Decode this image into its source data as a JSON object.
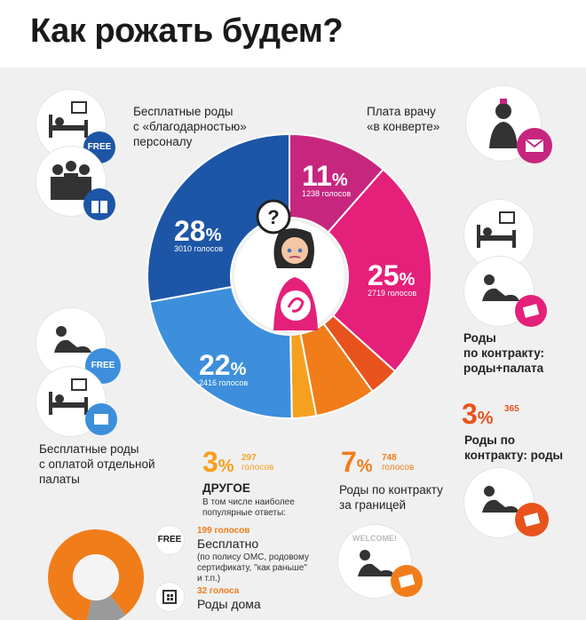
{
  "title": "Как рожать будем?",
  "colors": {
    "magenta_dark": "#c7267f",
    "magenta": "#e4207a",
    "orange_dark": "#e8531d",
    "orange": "#f07d1a",
    "orange_light": "#f6a01f",
    "blue": "#3d8fdc",
    "navy": "#1d56a6"
  },
  "chart_data": {
    "type": "pie",
    "title": "Как рожать будем?",
    "slices": [
      {
        "label": "Плата врачу «в конверте»",
        "percent": 11,
        "votes": 1238,
        "votes_text": "1238 голосов",
        "color": "#c7267f"
      },
      {
        "label": "Роды по контракту: роды+палата",
        "percent": 25,
        "votes": 2719,
        "votes_text": "2719 голосов",
        "color": "#e4207a"
      },
      {
        "label": "Роды по контракту: роды",
        "percent": 3,
        "votes": 365,
        "votes_text": "365",
        "color": "#e8531d"
      },
      {
        "label": "Роды по контракту за границей",
        "percent": 7,
        "votes": 748,
        "votes_text": "748",
        "color": "#f07d1a"
      },
      {
        "label": "ДРУГОЕ",
        "percent": 3,
        "votes": 297,
        "votes_text": "297",
        "color": "#f6a01f"
      },
      {
        "label": "Бесплатные роды с оплатой отдельной палаты",
        "percent": 22,
        "votes": 2416,
        "votes_text": "2416 голосов",
        "color": "#3d8fdc"
      },
      {
        "label": "Бесплатные роды с «благодарностью» персоналу",
        "percent": 28,
        "votes": 3010,
        "votes_text": "3010 голосов",
        "color": "#1d56a6"
      }
    ],
    "other_breakdown": {
      "type": "pie",
      "slices": [
        {
          "label": "Бесплатно",
          "votes": 199,
          "color": "#f07d1a"
        },
        {
          "label": "Роды дома",
          "votes": 32,
          "color": "#9a9a9a"
        }
      ]
    }
  },
  "labels": {
    "top_left": "Бесплатные роды\nс «благодарностью»\nперсоналу",
    "top_right": "Плата врачу\n«в конверте»",
    "right_mid": "Роды\nпо контракту:\nроды+палата",
    "right_low": "Роды по\nконтракту: роды",
    "left_low": "Бесплатные роды\nс оплатой отдельной\nпалаты",
    "abroad": "Роды по контракту\nза границей",
    "other_title": "ДРУГОЕ",
    "other_sub": "В том числе наиболее\nпопулярные ответы:",
    "free_votes": "199 голосов",
    "free_title": "Бесплатно",
    "free_desc": "(по полису ОМС, родовому\nсертификату, \"как раньше\"\nи т.п.)",
    "home_votes": "32 голоса",
    "home_title": "Роды дома",
    "free_badge": "FREE",
    "welcome": "WELCOME!",
    "percent_sign": "%",
    "votes_unit": "голосов"
  },
  "pct_text": {
    "p11": "11",
    "p25": "25",
    "p3a": "3",
    "p7": "7",
    "p3b": "3",
    "p22": "22",
    "p28": "28"
  },
  "icons": [
    "hospital-bed-icon",
    "doctors-group-icon",
    "doctor-icon",
    "envelope-money-icon",
    "gift-icon",
    "pregnant-woman-icon",
    "question-icon",
    "money-icon",
    "house-icon"
  ]
}
